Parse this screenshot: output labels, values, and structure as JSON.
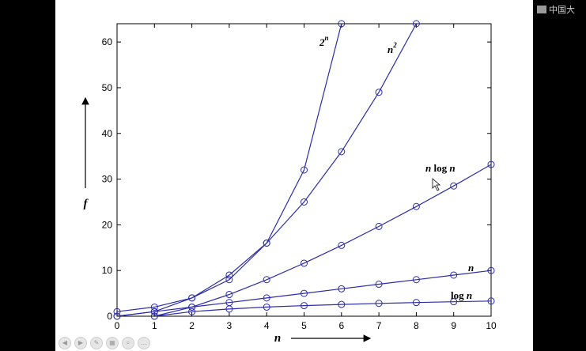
{
  "watermark": {
    "text": "中国大",
    "icon": "camera-logo-icon"
  },
  "chart_data": {
    "type": "line",
    "xlabel": "n",
    "ylabel": "f",
    "xlim": [
      0,
      10
    ],
    "ylim": [
      0,
      64
    ],
    "x_ticks": [
      "0",
      "1",
      "2",
      "3",
      "4",
      "5",
      "6",
      "7",
      "8",
      "9",
      "10"
    ],
    "y_ticks": [
      "0",
      "10",
      "20",
      "30",
      "40",
      "50",
      "60"
    ],
    "grid": false,
    "marker": "circle",
    "line_color": "#2b2bb0",
    "series": [
      {
        "name": "2^n",
        "label_main": "2",
        "label_sup": "n",
        "x": [
          0,
          1,
          2,
          3,
          4,
          5,
          6
        ],
        "y": [
          1,
          2,
          4,
          8,
          16,
          32,
          64
        ]
      },
      {
        "name": "n^2",
        "label_main": "n",
        "label_sup": "2",
        "x": [
          0,
          1,
          2,
          3,
          4,
          5,
          6,
          7,
          8
        ],
        "y": [
          0,
          1,
          4,
          9,
          16,
          25,
          36,
          49,
          64
        ]
      },
      {
        "name": "n log n",
        "label_main": "n log n",
        "label_sup": "",
        "x": [
          1,
          2,
          3,
          4,
          5,
          6,
          7,
          8,
          9,
          10
        ],
        "y": [
          0,
          2,
          4.75,
          8,
          11.6,
          15.5,
          19.65,
          24,
          28.5,
          33.2
        ]
      },
      {
        "name": "n",
        "label_main": "n",
        "label_sup": "",
        "x": [
          0,
          1,
          2,
          3,
          4,
          5,
          6,
          7,
          8,
          9,
          10
        ],
        "y": [
          0,
          1,
          2,
          3,
          4,
          5,
          6,
          7,
          8,
          9,
          10
        ]
      },
      {
        "name": "log n",
        "label_main": "log n",
        "label_sup": "",
        "x": [
          1,
          2,
          3,
          4,
          5,
          6,
          7,
          8,
          9,
          10
        ],
        "y": [
          0,
          1,
          1.58,
          2,
          2.32,
          2.58,
          2.81,
          3,
          3.17,
          3.32
        ]
      }
    ]
  },
  "player_controls": [
    {
      "name": "prev-slide-button",
      "glyph": "◀"
    },
    {
      "name": "next-slide-button",
      "glyph": "▶"
    },
    {
      "name": "pen-tool-button",
      "glyph": "✎"
    },
    {
      "name": "slide-sorter-button",
      "glyph": "▦"
    },
    {
      "name": "zoom-button",
      "glyph": "⌕"
    },
    {
      "name": "more-options-button",
      "glyph": "…"
    }
  ]
}
